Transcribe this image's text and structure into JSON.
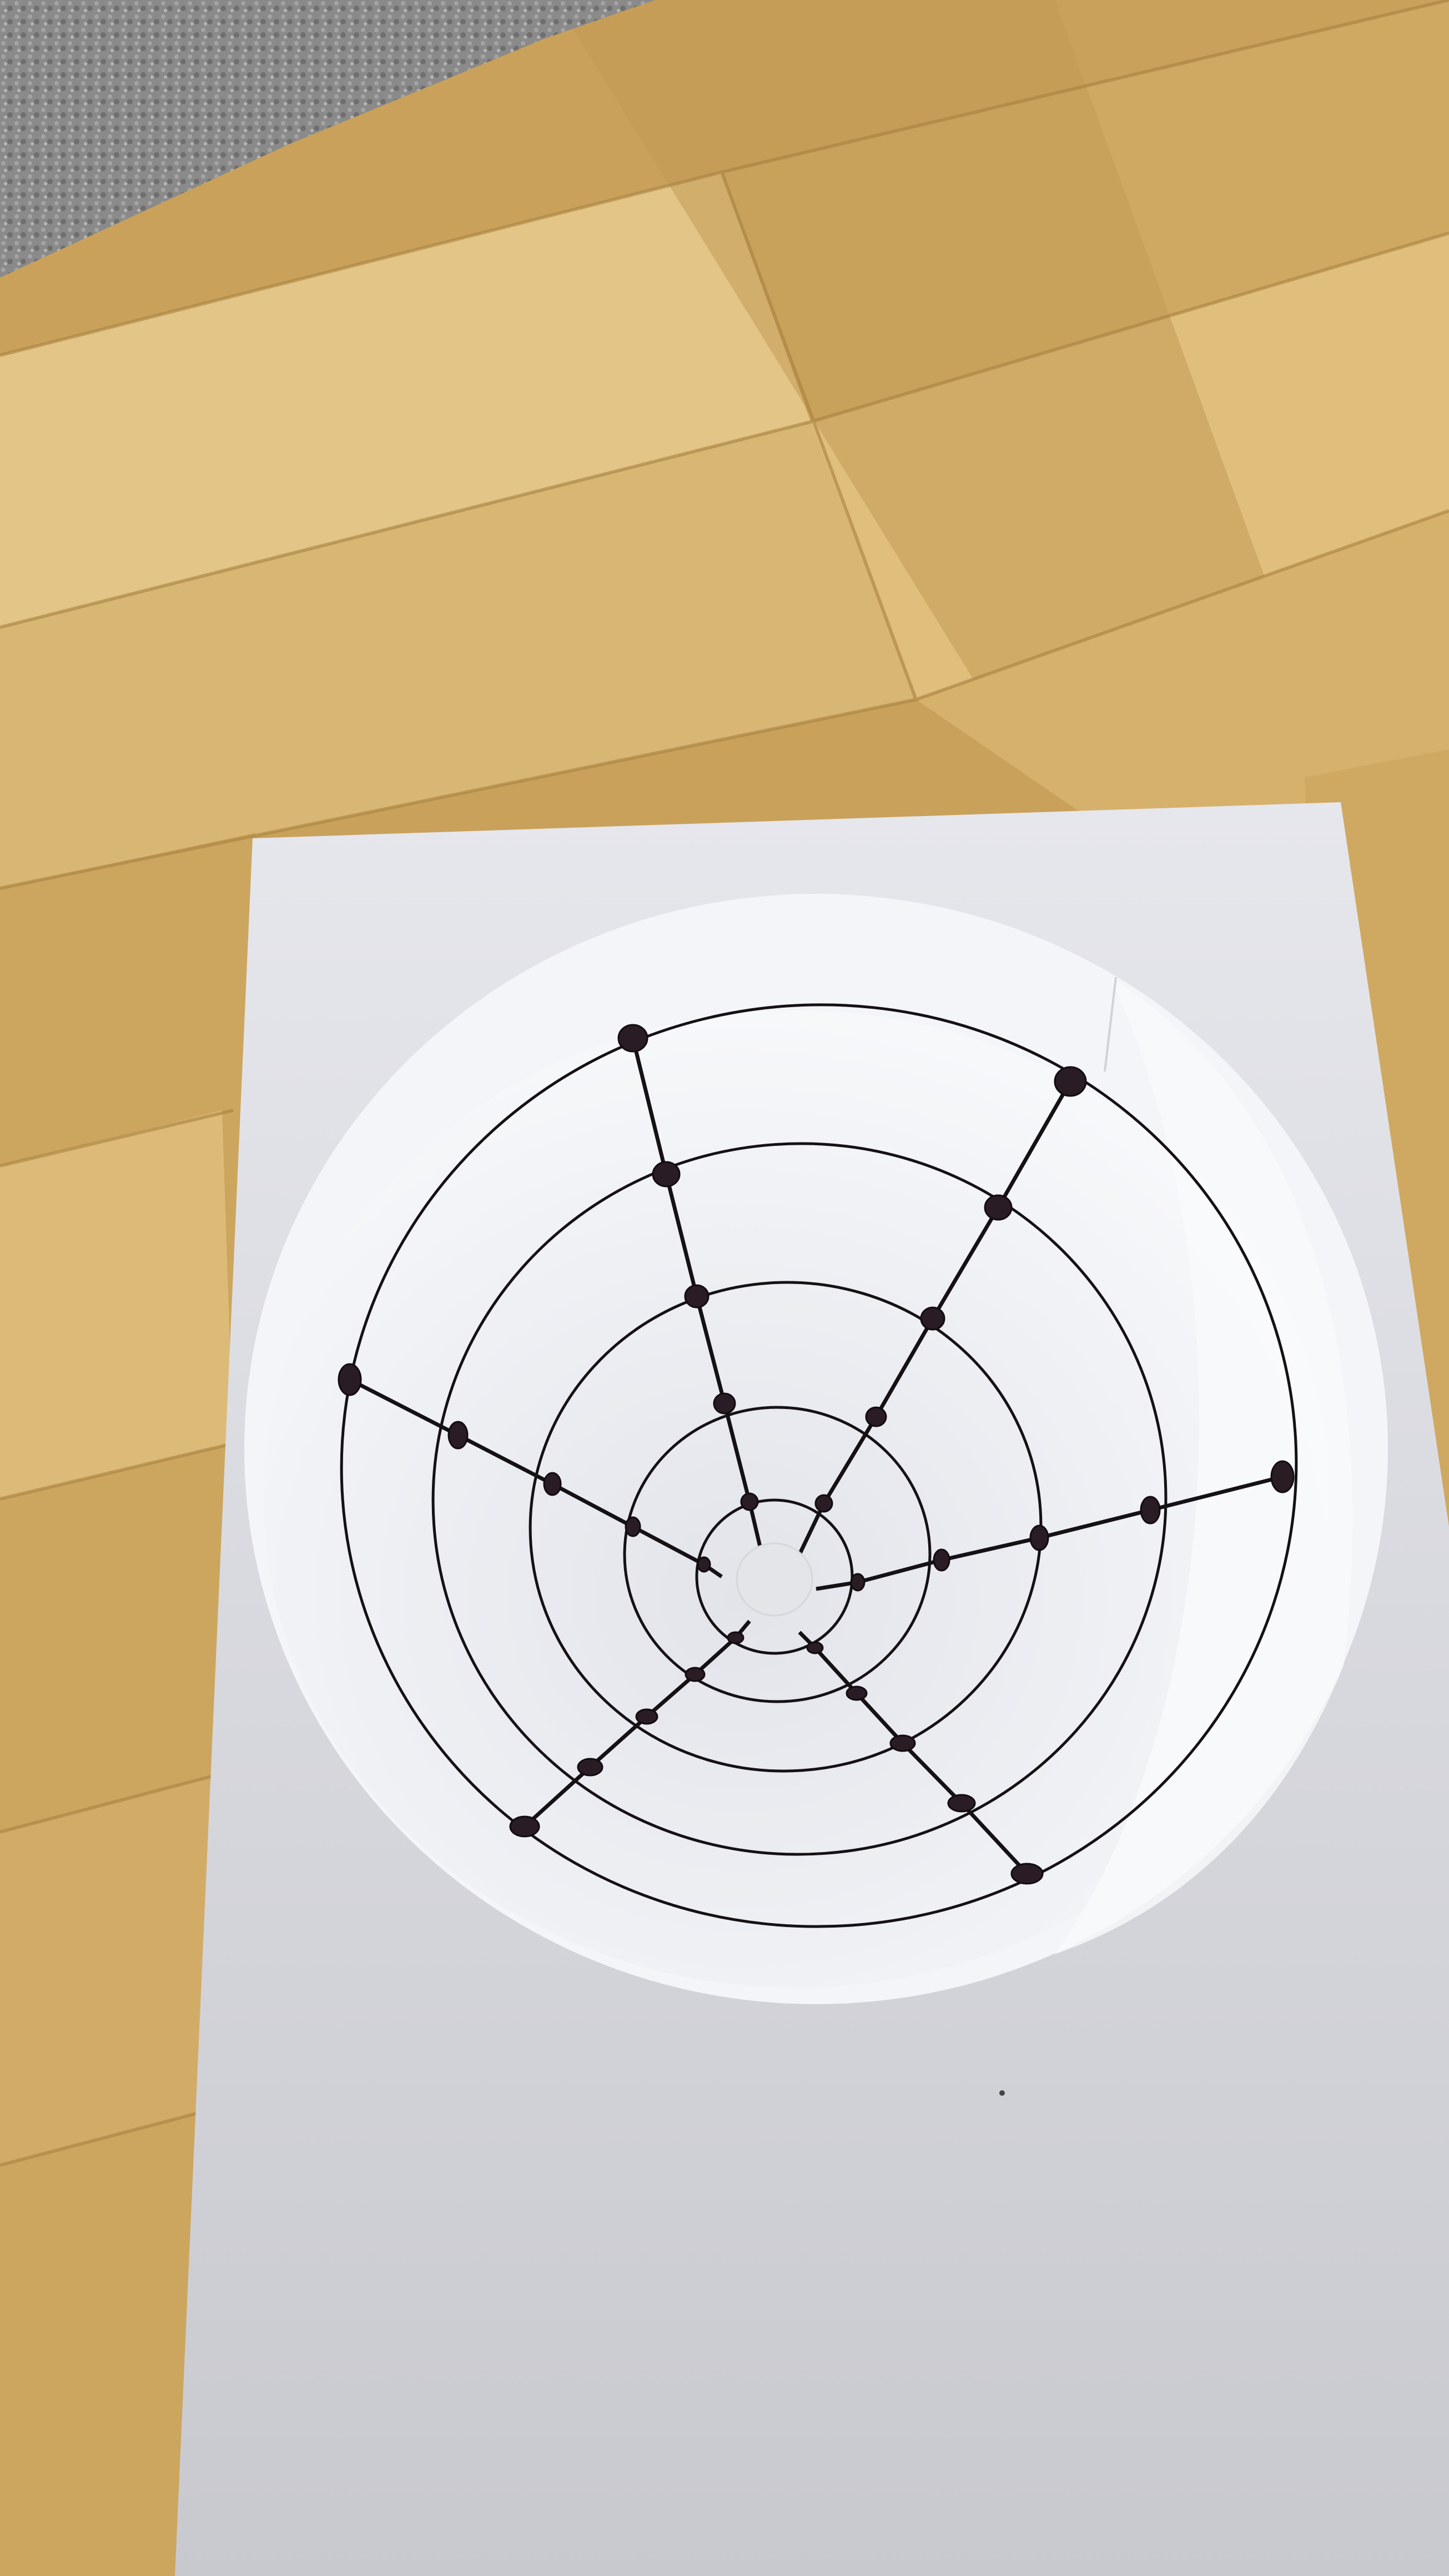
{
  "scene": {
    "colors": {
      "floor_light": "#e0c283",
      "floor_mid": "#caa25c",
      "floor_dark": "#b98d48",
      "carpet": "#8c8c8c",
      "paper": "#dcdde2",
      "paper_shadow": "#c9cad0",
      "cone_inner": "#eceef3",
      "cone_rim": "#f5f6f8",
      "ink": "#141014",
      "dot": "#2a1c24"
    }
  }
}
